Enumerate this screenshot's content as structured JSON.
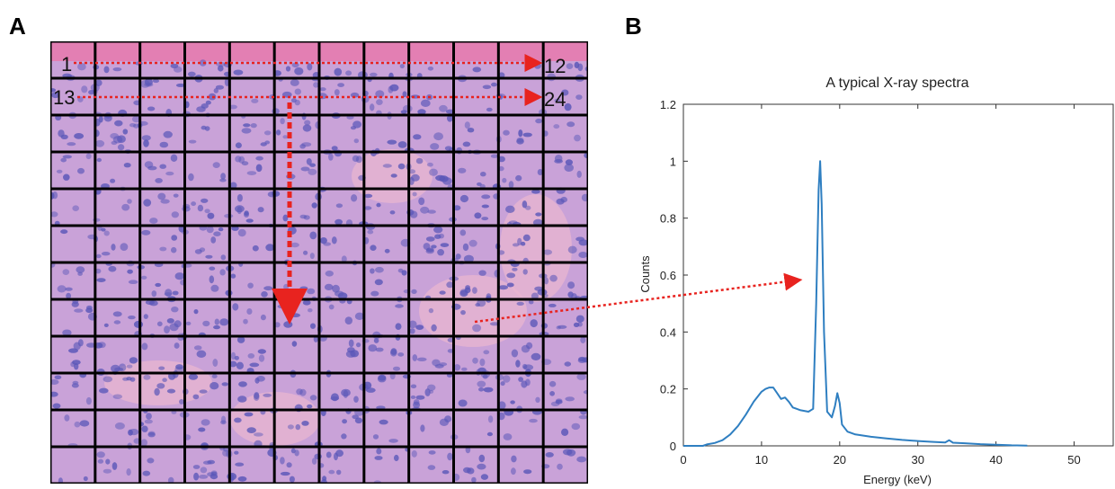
{
  "panels": {
    "a": {
      "label": "A"
    },
    "b": {
      "label": "B"
    }
  },
  "grid": {
    "rows": 12,
    "cols": 12,
    "row1_start_label": "1",
    "row1_end_label": "12",
    "row2_start_label": "13",
    "row2_end_label": "24"
  },
  "colors": {
    "tissue_base": "#c9a2d8",
    "nucleus": "#5a57b8",
    "stroma": "#e8b6d0",
    "gridline": "#000000",
    "arrow": "#e8231f",
    "series": "#2f7fc1"
  },
  "chart_data": {
    "type": "line",
    "title": "A typical X-ray spectra",
    "xlabel": "Energy (keV)",
    "ylabel": "Counts",
    "xlim": [
      0,
      55
    ],
    "ylim": [
      0,
      1.2
    ],
    "xticks": [
      0,
      10,
      20,
      30,
      40,
      50
    ],
    "yticks": [
      0,
      0.2,
      0.4,
      0.6,
      0.8,
      1,
      1.2
    ],
    "xtick_labels": [
      "0",
      "10",
      "20",
      "30",
      "40",
      "50"
    ],
    "ytick_labels": [
      "0",
      "0.2",
      "0.4",
      "0.6",
      "0.8",
      "1",
      "1.2"
    ],
    "grid": false,
    "series": [
      {
        "x": [
          0,
          2.5,
          3,
          4,
          5,
          6,
          7,
          8,
          9,
          10,
          10.5,
          11,
          11.5,
          12,
          12.5,
          13,
          13.5,
          14,
          14.5,
          15,
          16,
          16.6,
          17,
          17.3,
          17.5,
          17.7,
          18,
          18.4,
          19,
          19.4,
          19.7,
          20,
          20.3,
          21,
          22,
          24,
          26,
          28,
          30,
          32,
          33.5,
          34,
          34.5,
          36,
          38,
          40,
          42,
          44
        ],
        "y": [
          0,
          0,
          0.005,
          0.01,
          0.02,
          0.04,
          0.07,
          0.11,
          0.155,
          0.19,
          0.2,
          0.205,
          0.205,
          0.185,
          0.165,
          0.17,
          0.155,
          0.135,
          0.13,
          0.125,
          0.12,
          0.13,
          0.5,
          0.9,
          1.0,
          0.85,
          0.4,
          0.12,
          0.1,
          0.14,
          0.185,
          0.15,
          0.075,
          0.05,
          0.04,
          0.032,
          0.026,
          0.021,
          0.017,
          0.014,
          0.012,
          0.02,
          0.011,
          0.009,
          0.006,
          0.004,
          0.002,
          0.001
        ]
      }
    ]
  }
}
